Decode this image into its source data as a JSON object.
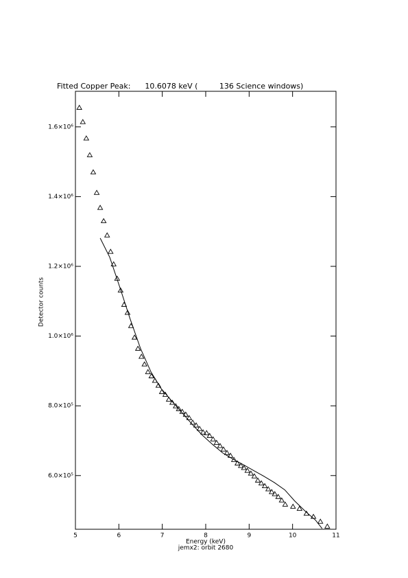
{
  "chart_data": {
    "type": "scatter",
    "title": "Fitted Copper Peak:      10.6078 keV (         136 Science windows)",
    "subtitle": "jemx2: orbit 2680",
    "xlabel": "Energy (keV)",
    "ylabel": "Detector counts",
    "xlim": [
      5,
      11
    ],
    "ylim": [
      446000,
      1702000
    ],
    "xticks": [
      5,
      6,
      7,
      8,
      9,
      10,
      11
    ],
    "yticks": [
      {
        "value": 600000,
        "label": "6.0×10⁵"
      },
      {
        "value": 800000,
        "label": "8.0×10⁵"
      },
      {
        "value": 1000000,
        "label": "1.0×10⁶"
      },
      {
        "value": 1200000,
        "label": "1.2×10⁶"
      },
      {
        "value": 1400000,
        "label": "1.4×10⁶"
      },
      {
        "value": 1600000,
        "label": "1.6×10⁶"
      }
    ],
    "color": "#000000",
    "x": [
      5.09,
      5.17,
      5.25,
      5.33,
      5.41,
      5.49,
      5.57,
      5.65,
      5.73,
      5.81,
      5.88,
      5.96,
      6.04,
      6.12,
      6.2,
      6.28,
      6.36,
      6.44,
      6.52,
      6.59,
      6.67,
      6.75,
      6.83,
      6.91,
      6.99,
      7.07,
      7.15,
      7.23,
      7.31,
      7.38,
      7.46,
      7.54,
      7.62,
      7.7,
      7.78,
      7.86,
      7.94,
      8.02,
      8.09,
      8.17,
      8.25,
      8.33,
      8.41,
      8.49,
      8.57,
      8.65,
      8.73,
      8.81,
      8.88,
      8.96,
      9.04,
      9.12,
      9.2,
      9.28,
      9.36,
      9.44,
      9.52,
      9.59,
      9.67,
      9.75,
      9.83,
      10.01,
      10.16,
      10.32,
      10.48,
      10.64,
      10.8
    ],
    "values": [
      1655000,
      1614000,
      1567000,
      1519000,
      1470000,
      1411000,
      1368000,
      1330000,
      1289000,
      1242000,
      1206000,
      1165000,
      1131000,
      1090000,
      1067000,
      1029000,
      996000,
      964000,
      941000,
      919000,
      897000,
      885000,
      872000,
      858000,
      840000,
      832000,
      818000,
      809000,
      799000,
      791000,
      783000,
      775000,
      765000,
      752000,
      744000,
      734000,
      724000,
      722000,
      714000,
      704000,
      694000,
      685000,
      675000,
      665000,
      657000,
      645000,
      635000,
      628000,
      622000,
      614000,
      606000,
      598000,
      586000,
      578000,
      570000,
      561000,
      553000,
      547000,
      539000,
      529000,
      517000,
      511000,
      505000,
      491000,
      482000,
      468000,
      454000
    ],
    "fit": {
      "type": "line",
      "color": "#000000",
      "x": [
        5.57,
        5.79,
        6.03,
        6.26,
        6.5,
        6.74,
        6.97,
        7.21,
        7.45,
        7.68,
        7.92,
        8.16,
        8.39,
        8.63,
        8.87,
        9.11,
        9.34,
        9.58,
        9.82,
        10.05,
        10.29,
        10.53,
        10.68
      ],
      "values": [
        1281000,
        1226000,
        1137000,
        1049000,
        964000,
        897000,
        850000,
        815000,
        781000,
        748000,
        716000,
        689000,
        665000,
        647000,
        631000,
        614000,
        598000,
        580000,
        559000,
        527000,
        498000,
        472000,
        448000
      ]
    }
  }
}
